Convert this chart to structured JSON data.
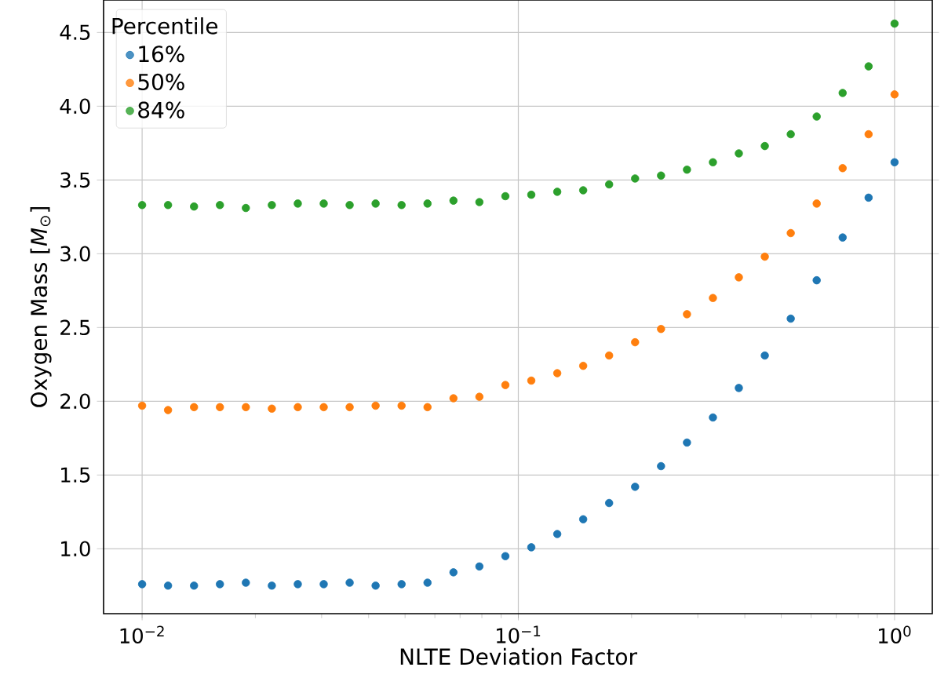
{
  "chart_data": {
    "type": "scatter",
    "xlabel": "NLTE Deviation Factor",
    "ylabel": "Oxygen Mass [*M*$_{⊙}$]",
    "legend_title": "Percentile",
    "x": [
      0.01,
      0.01172,
      0.01374,
      0.0161,
      0.01887,
      0.02212,
      0.02593,
      0.03039,
      0.03562,
      0.04175,
      0.04894,
      0.05736,
      0.06723,
      0.0788,
      0.09237,
      0.10826,
      0.1269,
      0.14874,
      0.17433,
      0.20434,
      0.2395,
      0.28072,
      0.32903,
      0.38566,
      0.45204,
      0.52983,
      0.62102,
      0.7279,
      0.85317,
      1.0
    ],
    "series": [
      {
        "name": "16%",
        "color": "#1f77b4",
        "values": [
          0.76,
          0.75,
          0.75,
          0.76,
          0.77,
          0.75,
          0.76,
          0.76,
          0.77,
          0.75,
          0.76,
          0.77,
          0.84,
          0.88,
          0.95,
          1.01,
          1.1,
          1.2,
          1.31,
          1.42,
          1.56,
          1.72,
          1.89,
          2.09,
          2.31,
          2.56,
          2.82,
          3.11,
          3.38,
          3.62
        ]
      },
      {
        "name": "50%",
        "color": "#ff7f0e",
        "values": [
          1.97,
          1.94,
          1.96,
          1.96,
          1.96,
          1.95,
          1.96,
          1.96,
          1.96,
          1.97,
          1.97,
          1.96,
          2.02,
          2.03,
          2.11,
          2.14,
          2.19,
          2.24,
          2.31,
          2.4,
          2.49,
          2.59,
          2.7,
          2.84,
          2.98,
          3.14,
          3.34,
          3.58,
          3.81,
          4.08
        ]
      },
      {
        "name": "84%",
        "color": "#2ca02c",
        "values": [
          3.33,
          3.33,
          3.32,
          3.33,
          3.31,
          3.33,
          3.34,
          3.34,
          3.33,
          3.34,
          3.33,
          3.34,
          3.36,
          3.35,
          3.39,
          3.4,
          3.42,
          3.43,
          3.47,
          3.51,
          3.53,
          3.57,
          3.62,
          3.68,
          3.73,
          3.81,
          3.93,
          4.09,
          4.27,
          4.56
        ]
      }
    ],
    "log": "x",
    "xlim": [
      0.0079,
      1.26
    ],
    "ylim": [
      0.56,
      4.72
    ],
    "xticks": [
      {
        "value": 0.01,
        "label": "10$^{−2}$"
      },
      {
        "value": 0.1,
        "label": "10$^{−1}$"
      },
      {
        "value": 1,
        "label": "10$^{0}$"
      }
    ],
    "yticks": [
      {
        "value": 1,
        "label": "1.0"
      },
      {
        "value": 1.5,
        "label": "1.5"
      },
      {
        "value": 2,
        "label": "2.0"
      },
      {
        "value": 2.5,
        "label": "2.5"
      },
      {
        "value": 3,
        "label": "3.0"
      },
      {
        "value": 3.5,
        "label": "3.5"
      },
      {
        "value": 4,
        "label": "4.0"
      },
      {
        "value": 4.5,
        "label": "4.5"
      }
    ],
    "grid": true,
    "legend": "top left",
    "marker": "circle"
  }
}
